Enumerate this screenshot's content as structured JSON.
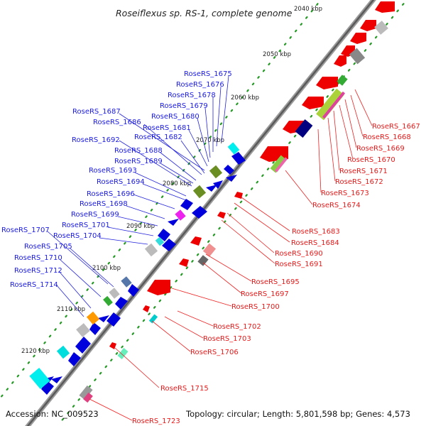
{
  "title": "Roseiflexus sp. RS-1, complete genome",
  "footer": {
    "accession": "Accession: NC_009523",
    "summary": "Topology: circular; Length: 5,801,598 bp; Genes: 4,573"
  },
  "colors": {
    "forward_label": "#1a1ae6",
    "reverse_label": "#e61a1a",
    "forward_gene": "#0000dd",
    "reverse_gene": "#ee0000",
    "backbone": "#777777",
    "tick": "#228822"
  },
  "kbp_marks": [
    "2040 kbp",
    "2050 kbp",
    "2060 kbp",
    "2070 kbp",
    "2080 kbp",
    "2090 kbp",
    "2100 kbp",
    "2110 kbp",
    "2120 kbp"
  ],
  "forward_labels": [
    "RoseRS_1675",
    "RoseRS_1676",
    "RoseRS_1678",
    "RoseRS_1679",
    "RoseRS_1680",
    "RoseRS_1687",
    "RoseRS_1686",
    "RoseRS_1681",
    "RoseRS_1682",
    "RoseRS_1692",
    "RoseRS_1688",
    "RoseRS_1689",
    "RoseRS_1693",
    "RoseRS_1694",
    "RoseRS_1696",
    "RoseRS_1698",
    "RoseRS_1699",
    "RoseRS_1701",
    "RoseRS_1707",
    "RoseRS_1704",
    "RoseRS_1705",
    "RoseRS_1710",
    "RoseRS_1712",
    "RoseRS_1714"
  ],
  "reverse_labels": [
    "RoseRS_1667",
    "RoseRS_1668",
    "RoseRS_1669",
    "RoseRS_1670",
    "RoseRS_1671",
    "RoseRS_1672",
    "RoseRS_1673",
    "RoseRS_1674",
    "RoseRS_1683",
    "RoseRS_1684",
    "RoseRS_1690",
    "RoseRS_1691",
    "RoseRS_1695",
    "RoseRS_1697",
    "RoseRS_1700",
    "RoseRS_1702",
    "RoseRS_1703",
    "RoseRS_1706",
    "RoseRS_1715",
    "RoseRS_1723"
  ]
}
